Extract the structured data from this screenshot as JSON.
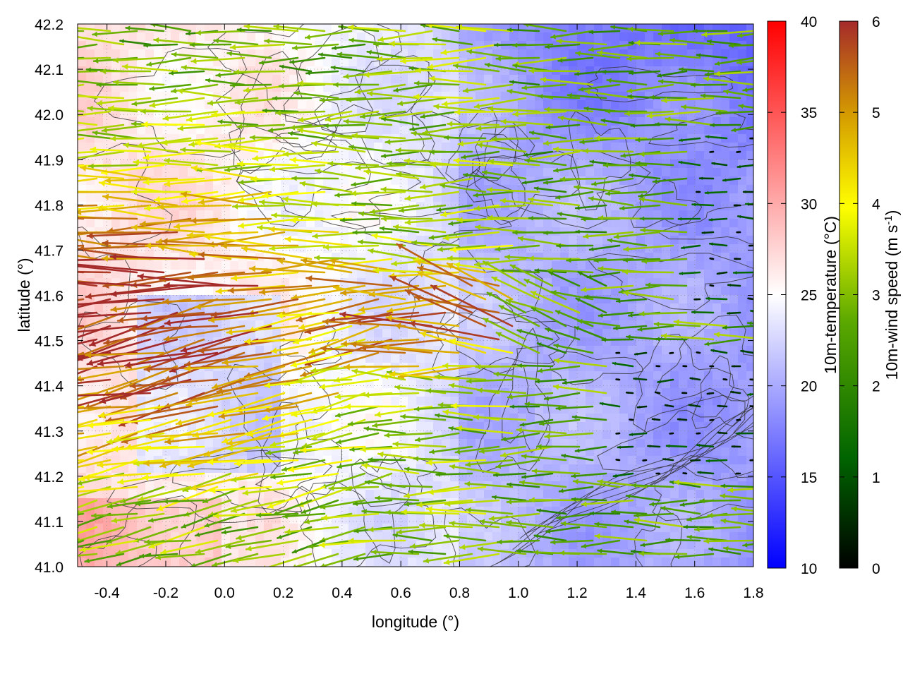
{
  "chart_data": {
    "type": "vector-field-heatmap",
    "xlabel": "longitude (°)",
    "ylabel": "latitude (°)",
    "xlim": [
      -0.5,
      1.8
    ],
    "ylim": [
      41.0,
      42.2
    ],
    "x_ticks": [
      "-0.4",
      "-0.2",
      "0.0",
      "0.2",
      "0.4",
      "0.6",
      "0.8",
      "1.0",
      "1.2",
      "1.4",
      "1.6",
      "1.8"
    ],
    "y_ticks": [
      "41.0",
      "41.1",
      "41.2",
      "41.3",
      "41.4",
      "41.5",
      "41.6",
      "41.7",
      "41.8",
      "41.9",
      "42.0",
      "42.1",
      "42.2"
    ],
    "grid": true,
    "contours": true,
    "temperature_colorbar": {
      "label": "10m-temperature (°C)",
      "range": [
        10,
        40
      ],
      "ticks": [
        "10",
        "15",
        "20",
        "25",
        "30",
        "35",
        "40"
      ],
      "colors": [
        "#0000ff",
        "#ffffff",
        "#ff0000"
      ]
    },
    "wind_colorbar": {
      "label_main": "10m-wind speed (m s",
      "label_sup": "-1",
      "label_end": ")",
      "range": [
        0,
        6
      ],
      "ticks": [
        "0",
        "1",
        "2",
        "3",
        "4",
        "5",
        "6"
      ],
      "colors": [
        "#000000",
        "#006400",
        "#7fbf00",
        "#ffff00",
        "#d49b00",
        "#a52a2a"
      ]
    },
    "temperature_field_summary": {
      "west_lon_below_0.2": 27,
      "central_lon_0.2_to_0.8": 24,
      "east_lon_above_1.0": 21,
      "northeast_min": 15
    },
    "wind_field_summary": {
      "direction": "mostly easterly (arrows pointing west)",
      "strong_core_speed": 6,
      "strong_core_region": "lon -0.5 to 0.5, lat 41.2 to 41.9",
      "weak_region_speed": 0.5,
      "weak_region": "lon 1.3 to 1.8, lat 41.2 to 41.5"
    }
  }
}
